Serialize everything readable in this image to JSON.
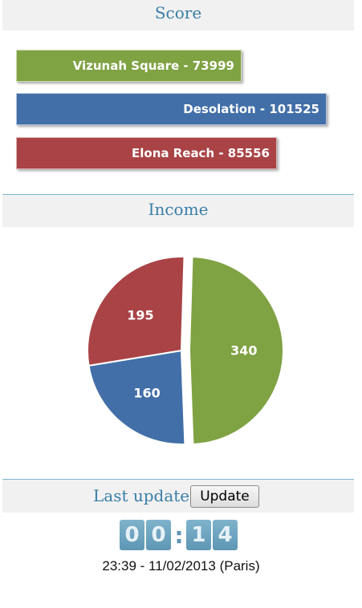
{
  "score": {
    "title": "Score",
    "bars": [
      {
        "label": "Vizunah Square - 73999",
        "value": 73999,
        "color": "#7fa243"
      },
      {
        "label": "Desolation - 101525",
        "value": 101525,
        "color": "#426fa8"
      },
      {
        "label": "Elona Reach - 85556",
        "value": 85556,
        "color": "#a94346"
      }
    ]
  },
  "income": {
    "title": "Income"
  },
  "chart_data": {
    "type": "pie",
    "slices": [
      {
        "label": "340",
        "value": 340,
        "color": "#7fa243"
      },
      {
        "label": "160",
        "value": 160,
        "color": "#426fa8"
      },
      {
        "label": "195",
        "value": 195,
        "color": "#a94346"
      }
    ]
  },
  "last_update": {
    "title": "Last update",
    "button_label": "Update",
    "timer_digits": [
      "0",
      "0",
      "1",
      "4"
    ],
    "timer_separator": ":",
    "timestamp": "23:39 - 11/02/2013 (Paris)"
  }
}
